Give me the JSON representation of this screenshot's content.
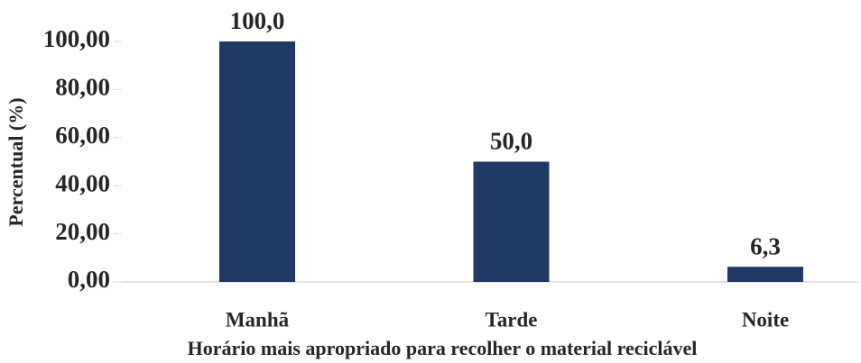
{
  "chart_data": {
    "type": "bar",
    "x_label": "Horário mais apropriado para recolher o material reciclável",
    "y_label": "Percentual (%)",
    "categories": [
      "Manhã",
      "Tarde",
      "Noite"
    ],
    "values": [
      100,
      50,
      6.3
    ],
    "value_labels": [
      "100,0",
      "50,0",
      "6,3"
    ],
    "color": "#203864",
    "ylim": [
      0,
      100
    ],
    "yticks": [
      {
        "value": 0,
        "label": "0,00"
      },
      {
        "value": 20,
        "label": "20,00"
      },
      {
        "value": 40,
        "label": "40,00"
      },
      {
        "value": 60,
        "label": "60,00"
      },
      {
        "value": 80,
        "label": "80,00"
      },
      {
        "value": 100,
        "label": "100,00"
      }
    ],
    "grid": false
  }
}
